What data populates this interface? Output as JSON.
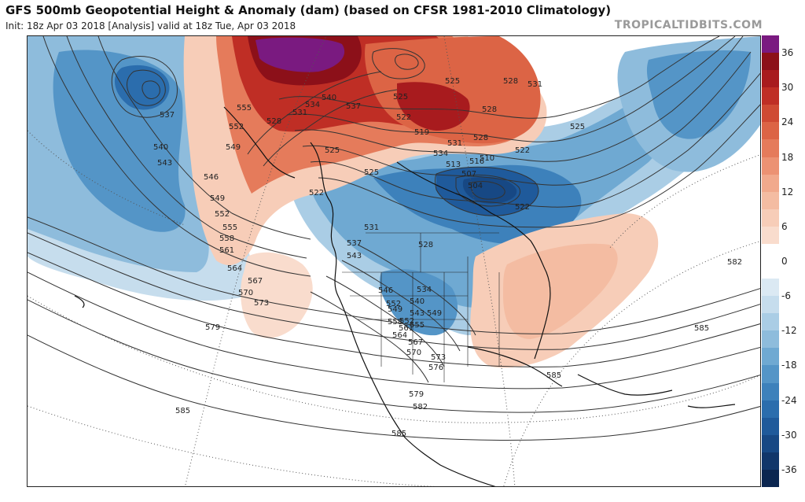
{
  "header": {
    "title": "GFS 500mb Geopotential Height & Anomaly (dam) (based on CFSR 1981-2010 Climatology)",
    "subtitle": "Init: 18z Apr 03 2018   [Analysis]   valid at 18z Tue, Apr 03 2018",
    "watermark": "TROPICALTIDBITS.COM"
  },
  "colorbar": {
    "labels": [
      "36",
      "30",
      "24",
      "18",
      "12",
      "6",
      "0",
      "-6",
      "-12",
      "-18",
      "-24",
      "-30",
      "-36"
    ],
    "segments": [
      {
        "from": 39,
        "to": 36,
        "color": "#7a1a80"
      },
      {
        "from": 36,
        "to": 33,
        "color": "#8c1019"
      },
      {
        "from": 33,
        "to": 30,
        "color": "#a81b1e"
      },
      {
        "from": 30,
        "to": 27,
        "color": "#bf2e25"
      },
      {
        "from": 27,
        "to": 24,
        "color": "#cf4a33"
      },
      {
        "from": 24,
        "to": 21,
        "color": "#dc6445"
      },
      {
        "from": 21,
        "to": 18,
        "color": "#e57b5b"
      },
      {
        "from": 18,
        "to": 15,
        "color": "#ec9273"
      },
      {
        "from": 15,
        "to": 12,
        "color": "#f1a98c"
      },
      {
        "from": 12,
        "to": 9,
        "color": "#f4bca2"
      },
      {
        "from": 9,
        "to": 6,
        "color": "#f7cdb8"
      },
      {
        "from": 6,
        "to": 3,
        "color": "#f9dccd"
      },
      {
        "from": 3,
        "to": -3,
        "color": "#ffffff"
      },
      {
        "from": -3,
        "to": -6,
        "color": "#dbe9f3"
      },
      {
        "from": -6,
        "to": -9,
        "color": "#c6dded"
      },
      {
        "from": -9,
        "to": -12,
        "color": "#aacde5"
      },
      {
        "from": -12,
        "to": -15,
        "color": "#8ebcdc"
      },
      {
        "from": -15,
        "to": -18,
        "color": "#6fa9d2"
      },
      {
        "from": -18,
        "to": -21,
        "color": "#5495c7"
      },
      {
        "from": -21,
        "to": -24,
        "color": "#3d81bb"
      },
      {
        "from": -24,
        "to": -27,
        "color": "#2b6dad"
      },
      {
        "from": -27,
        "to": -30,
        "color": "#1f5a9b"
      },
      {
        "from": -30,
        "to": -33,
        "color": "#174884"
      },
      {
        "from": -33,
        "to": -36,
        "color": "#11366a"
      },
      {
        "from": -36,
        "to": -39,
        "color": "#0b2650"
      }
    ]
  },
  "contour_labels": [
    "537",
    "540",
    "543",
    "546",
    "549",
    "552",
    "555",
    "558",
    "561",
    "564",
    "567",
    "570",
    "573",
    "579",
    "585",
    "555",
    "552",
    "549",
    "531",
    "534",
    "528",
    "540",
    "537",
    "525",
    "522",
    "525",
    "531",
    "528",
    "525",
    "522",
    "519",
    "516",
    "513",
    "507",
    "504",
    "510",
    "522",
    "525",
    "528",
    "531",
    "537",
    "543",
    "546",
    "549",
    "552",
    "558",
    "561",
    "564",
    "567",
    "570",
    "573",
    "576",
    "534",
    "540",
    "543",
    "549",
    "552",
    "555",
    "579",
    "582",
    "585",
    "585",
    "585",
    "582",
    "528",
    "531",
    "534",
    "525",
    "528",
    "522"
  ]
}
